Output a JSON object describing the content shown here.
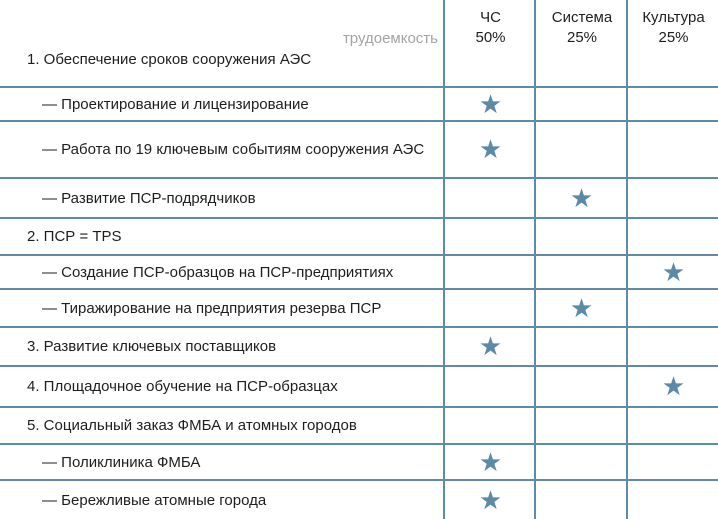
{
  "header": {
    "label": "трудоемкость",
    "columns": [
      {
        "name": "ЧС",
        "share": "50%"
      },
      {
        "name": "Система",
        "share": "25%"
      },
      {
        "name": "Культура",
        "share": "25%"
      }
    ]
  },
  "star_color": "#5b8aa6",
  "rows": [
    {
      "text": "1. Обеспечение сроков сооружения АЭС",
      "level": 0,
      "star": null
    },
    {
      "text": "— Проектирование и лицензирование",
      "level": 1,
      "star": 0
    },
    {
      "text": "— Работа по 19 ключевым событиям сооружения АЭС",
      "level": 1,
      "star": 0
    },
    {
      "text": "— Развитие ПСР-подрядчиков",
      "level": 1,
      "star": 1
    },
    {
      "text": "2. ПСР = TPS",
      "level": 0,
      "star": null
    },
    {
      "text": "— Создание ПСР-образцов на ПСР-предприятиях",
      "level": 1,
      "star": 2
    },
    {
      "text": "— Тиражирование на предприятия резерва ПСР",
      "level": 1,
      "star": 1
    },
    {
      "text": "3. Развитие ключевых поставщиков",
      "level": 0,
      "star": 0
    },
    {
      "text": "4. Площадочное обучение на ПСР-образцах",
      "level": 0,
      "star": 2
    },
    {
      "text": "5. Социальный заказ ФМБА и атомных городов",
      "level": 0,
      "star": null
    },
    {
      "text": "— Поликлиника ФМБА",
      "level": 1,
      "star": 0
    },
    {
      "text": "— Бережливые атомные города",
      "level": 1,
      "star": 0
    }
  ]
}
